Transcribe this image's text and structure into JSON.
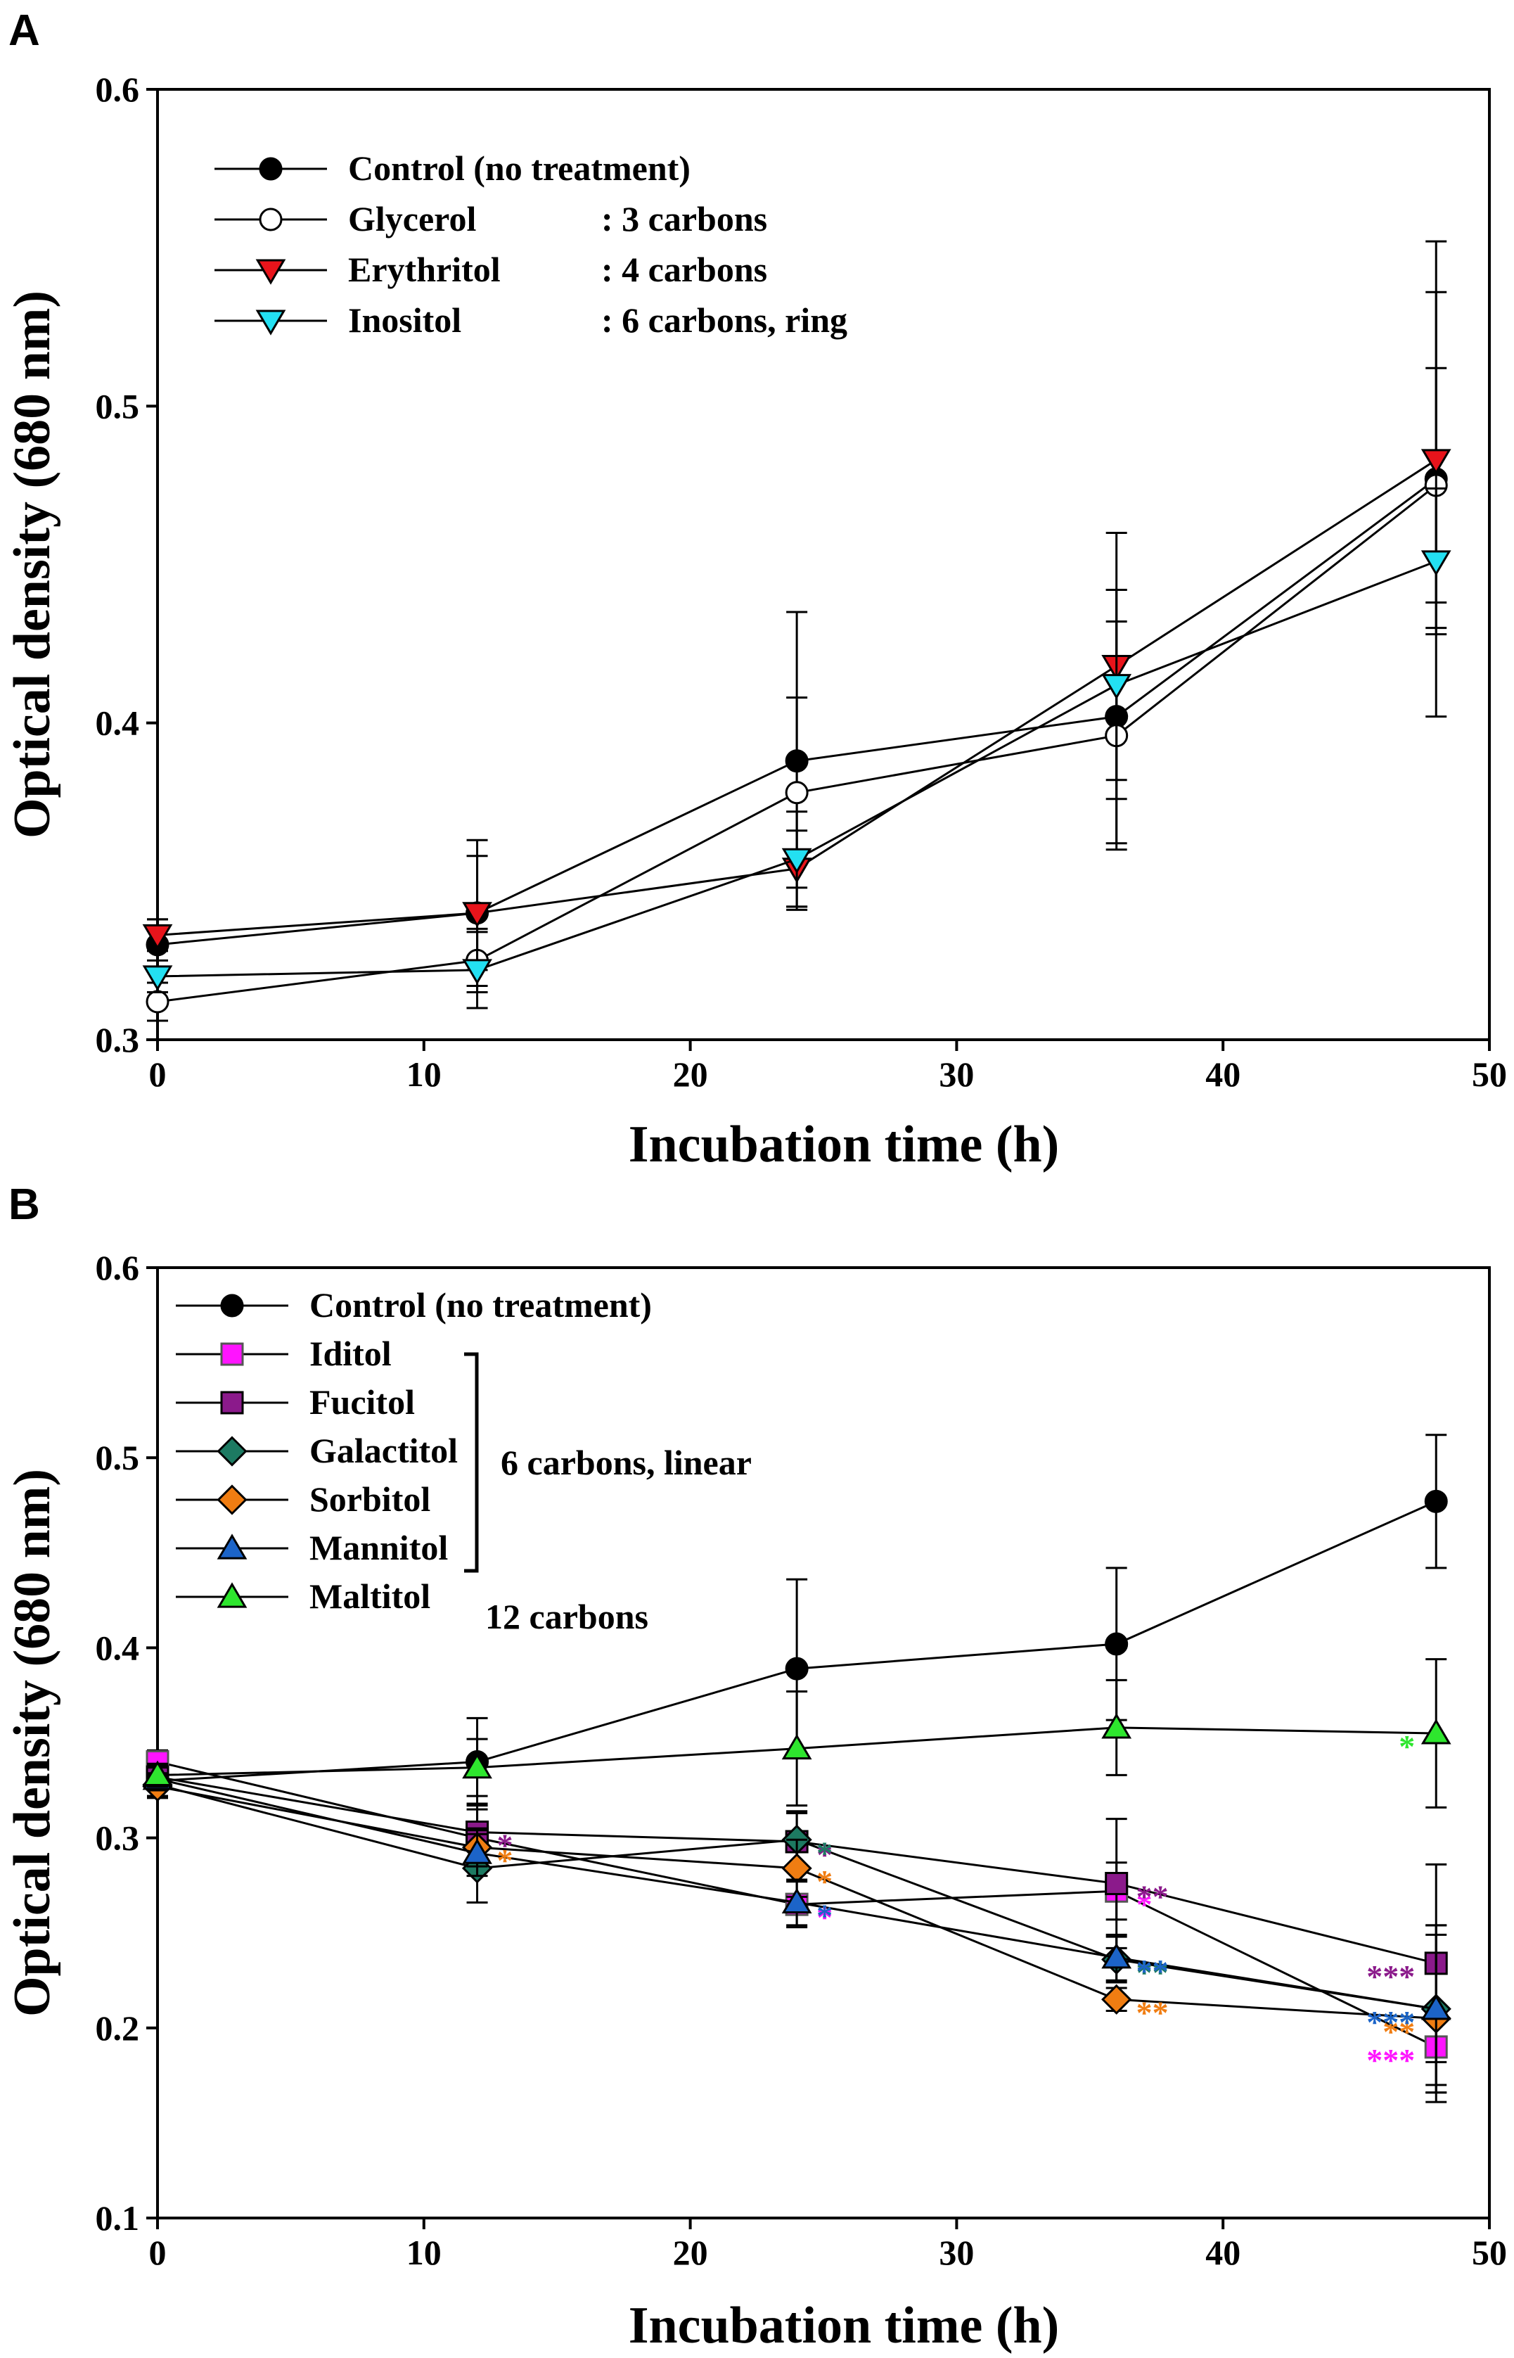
{
  "panel_labels": [
    "A",
    "B"
  ],
  "chart_data": [
    {
      "type": "line",
      "panel": "A",
      "title": "",
      "xlabel": "Incubation time (h)",
      "ylabel": "Optical density (680 nm)",
      "xlim": [
        0,
        50
      ],
      "ylim": [
        0.3,
        0.6
      ],
      "xticks": [
        0,
        10,
        20,
        30,
        40,
        50
      ],
      "xtick_labels": [
        "0",
        "10",
        "20",
        "30",
        "40",
        "50"
      ],
      "yticks": [
        0.3,
        0.4,
        0.5,
        0.6
      ],
      "ytick_labels": [
        "0.3",
        "0.4",
        "0.5",
        "0.6"
      ],
      "legend_position": "top-left",
      "x": [
        0,
        12,
        24,
        36,
        48
      ],
      "series": [
        {
          "name": "Control (no treatment)",
          "note": "",
          "marker": "circle",
          "color": "#000000",
          "stroke": "#000000",
          "values": [
            0.33,
            0.34,
            0.388,
            0.402,
            0.477
          ],
          "errors": [
            0.008,
            0.023,
            0.047,
            0.04,
            0.075
          ]
        },
        {
          "name": "Glycerol",
          "note": ": 3 carbons",
          "marker": "circle",
          "color": "#ffffff",
          "stroke": "#000000",
          "values": [
            0.312,
            0.325,
            0.378,
            0.396,
            0.475
          ],
          "errors": [
            0.006,
            0.01,
            0.03,
            0.036,
            0.037
          ]
        },
        {
          "name": "Erythritol",
          "note": ": 4 carbons",
          "marker": "triangle-down",
          "color": "#e8141b",
          "stroke": "#000000",
          "values": [
            0.333,
            0.34,
            0.354,
            0.418,
            0.483
          ],
          "errors": [
            0.005,
            0.018,
            0.012,
            0.042,
            0.053
          ]
        },
        {
          "name": "Inositol",
          "note": ": 6 carbons, ring",
          "marker": "triangle-down",
          "color": "#23e0f2",
          "stroke": "#000000",
          "values": [
            0.32,
            0.322,
            0.357,
            0.412,
            0.451
          ],
          "errors": [
            0.005,
            0.012,
            0.015,
            0.03,
            0.023
          ]
        }
      ]
    },
    {
      "type": "line",
      "panel": "B",
      "title": "",
      "xlabel": "Incubation time (h)",
      "ylabel": "Optical density (680 nm)",
      "xlim": [
        0,
        50
      ],
      "ylim": [
        0.1,
        0.6
      ],
      "xticks": [
        0,
        10,
        20,
        30,
        40,
        50
      ],
      "xtick_labels": [
        "0",
        "10",
        "20",
        "30",
        "40",
        "50"
      ],
      "yticks": [
        0.1,
        0.2,
        0.3,
        0.4,
        0.5,
        0.6
      ],
      "ytick_labels": [
        "0.1",
        "0.2",
        "0.3",
        "0.4",
        "0.5",
        "0.6"
      ],
      "legend_position": "top-left",
      "group_labels": {
        "linear": "6 carbons, linear",
        "maltitol": "12 carbons"
      },
      "x": [
        0,
        12,
        24,
        36,
        48
      ],
      "series": [
        {
          "name": "Control (no treatment)",
          "marker": "circle",
          "color": "#000000",
          "stroke": "#000000",
          "values": [
            0.33,
            0.34,
            0.389,
            0.402,
            0.477
          ],
          "errors": [
            0.008,
            0.023,
            0.047,
            0.04,
            0.035
          ],
          "significance": [
            "",
            "",
            "",
            "",
            ""
          ]
        },
        {
          "name": "Iditol",
          "marker": "square",
          "color": "#ff14ff",
          "stroke": "#555555",
          "values": [
            0.34,
            0.3,
            0.265,
            0.272,
            0.19
          ],
          "errors": [
            0.006,
            0.015,
            0.012,
            0.015,
            0.02
          ],
          "significance": [
            "",
            "",
            "*",
            "*",
            "***"
          ]
        },
        {
          "name": "Fucitol",
          "marker": "square",
          "color": "#8b1a8b",
          "stroke": "#000000",
          "values": [
            0.332,
            0.303,
            0.298,
            0.276,
            0.234
          ],
          "errors": [
            0.006,
            0.015,
            0.015,
            0.034,
            0.052
          ],
          "significance": [
            "",
            "*",
            "*",
            "**",
            "***"
          ]
        },
        {
          "name": "Galactitol",
          "marker": "diamond",
          "color": "#1d7a62",
          "stroke": "#000000",
          "values": [
            0.328,
            0.284,
            0.299,
            0.236,
            0.21
          ],
          "errors": [
            0.006,
            0.018,
            0.015,
            0.012,
            0.044
          ],
          "significance": [
            "",
            "",
            "*",
            "**",
            "**"
          ]
        },
        {
          "name": "Sorbitol",
          "marker": "diamond",
          "color": "#f07d12",
          "stroke": "#000000",
          "values": [
            0.327,
            0.295,
            0.284,
            0.215,
            0.205
          ],
          "errors": [
            0.006,
            0.01,
            0.015,
            0.006,
            0.044
          ],
          "significance": [
            "",
            "*",
            "*",
            "**",
            "**"
          ]
        },
        {
          "name": "Mannitol",
          "marker": "triangle-up",
          "color": "#1c64c8",
          "stroke": "#000000",
          "values": [
            0.331,
            0.292,
            0.266,
            0.237,
            0.21
          ],
          "errors": [
            0.006,
            0.012,
            0.012,
            0.012,
            0.044
          ],
          "significance": [
            "",
            "",
            "*",
            "**",
            "***"
          ]
        },
        {
          "name": "Maltitol",
          "marker": "triangle-up",
          "color": "#2ee62e",
          "stroke": "#000000",
          "values": [
            0.333,
            0.337,
            0.347,
            0.358,
            0.355
          ],
          "errors": [
            0.006,
            0.015,
            0.03,
            0.025,
            0.039
          ],
          "significance": [
            "",
            "",
            "",
            "",
            "*"
          ]
        }
      ]
    }
  ]
}
